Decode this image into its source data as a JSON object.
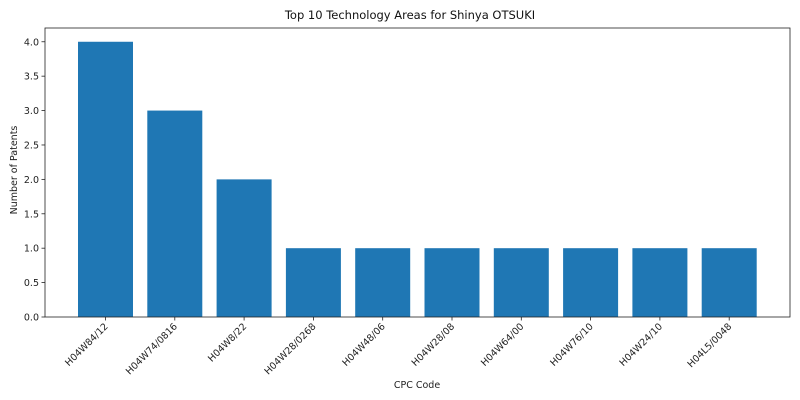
{
  "chart_data": {
    "type": "bar",
    "title": "Top 10 Technology Areas for Shinya OTSUKI",
    "xlabel": "CPC Code",
    "ylabel": "Number of Patents",
    "categories": [
      "H04W84/12",
      "H04W74/0816",
      "H04W8/22",
      "H04W28/0268",
      "H04W48/06",
      "H04W28/08",
      "H04W64/00",
      "H04W76/10",
      "H04W24/10",
      "H04L5/0048"
    ],
    "values": [
      4,
      3,
      2,
      1,
      1,
      1,
      1,
      1,
      1,
      1
    ],
    "ylim": [
      0,
      4.2
    ],
    "yticks": [
      "0.0",
      "0.5",
      "1.0",
      "1.5",
      "2.0",
      "2.5",
      "3.0",
      "3.5",
      "4.0"
    ],
    "bar_color": "#1f77b4",
    "grid": false,
    "legend": "none"
  }
}
